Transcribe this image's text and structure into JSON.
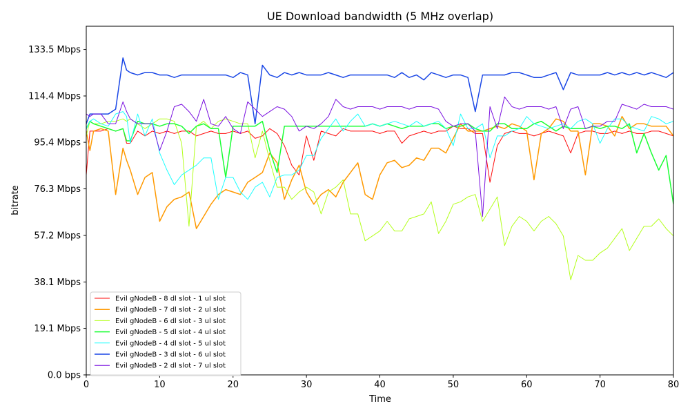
{
  "chart_data": {
    "type": "line",
    "title": "UE Download bandwidth (5 MHz overlap)",
    "xlabel": "Time",
    "ylabel": "bitrate",
    "xlim": [
      0,
      80
    ],
    "ylim": [
      0,
      143
    ],
    "x_ticks": [
      0,
      10,
      20,
      30,
      40,
      50,
      60,
      70,
      80
    ],
    "y_ticks": [
      {
        "value": 0,
        "label": "0.0 bps"
      },
      {
        "value": 19.1,
        "label": "19.1 Mbps"
      },
      {
        "value": 38.1,
        "label": "38.1 Mbps"
      },
      {
        "value": 57.2,
        "label": "57.2 Mbps"
      },
      {
        "value": 76.3,
        "label": "76.3 Mbps"
      },
      {
        "value": 95.4,
        "label": "95.4 Mbps"
      },
      {
        "value": 114.4,
        "label": "114.4 Mbps"
      },
      {
        "value": 133.5,
        "label": "133.5 Mbps"
      }
    ],
    "grid": false,
    "legend_position": "lower-left",
    "x": [
      0,
      0.5,
      1,
      2,
      3,
      4,
      5,
      5.5,
      6,
      7,
      8,
      9,
      10,
      11,
      12,
      13,
      14,
      15,
      16,
      17,
      18,
      19,
      20,
      21,
      22,
      23,
      24,
      25,
      26,
      27,
      28,
      29,
      30,
      31,
      32,
      33,
      34,
      35,
      36,
      37,
      38,
      39,
      40,
      41,
      42,
      43,
      44,
      45,
      46,
      47,
      48,
      49,
      50,
      51,
      52,
      53,
      54,
      55,
      56,
      57,
      58,
      59,
      60,
      61,
      62,
      63,
      64,
      65,
      66,
      67,
      68,
      69,
      70,
      71,
      72,
      73,
      74,
      75,
      76,
      77,
      78,
      79,
      80
    ],
    "series": [
      {
        "name": "Evil gNodeB - 8 dl slot - 1 ul slot",
        "color": "#ff0a0a",
        "width": 1,
        "values": [
          82,
          100,
          100,
          100,
          101,
          100,
          101,
          95,
          95,
          100,
          98,
          100,
          99,
          100,
          99,
          100,
          100,
          98,
          99,
          100,
          99,
          99,
          100,
          99,
          100,
          97,
          98,
          101,
          99,
          94,
          86,
          82,
          98,
          88,
          100,
          99,
          98,
          101,
          100,
          100,
          100,
          100,
          99,
          100,
          100,
          95,
          98,
          99,
          100,
          99,
          100,
          100,
          102,
          101,
          101,
          99,
          99,
          79,
          94,
          99,
          100,
          99,
          99,
          98,
          99,
          100,
          99,
          98,
          91,
          99,
          100,
          100,
          99,
          99,
          100,
          99,
          100,
          99,
          99,
          100,
          100,
          99,
          98
        ]
      },
      {
        "name": "Evil gNodeB - 7 dl slot - 2 ul slot",
        "color": "#ff9900",
        "width": 1.5,
        "values": [
          100,
          92,
          100,
          101,
          100,
          74,
          93,
          88,
          84,
          74,
          81,
          83,
          63,
          69,
          72,
          73,
          75,
          60,
          65,
          70,
          74,
          76,
          75,
          74,
          79,
          81,
          83,
          91,
          87,
          72,
          80,
          86,
          75,
          70,
          74,
          76,
          73,
          79,
          83,
          87,
          74,
          72,
          82,
          87,
          88,
          85,
          86,
          89,
          88,
          93,
          93,
          91,
          97,
          103,
          100,
          100,
          100,
          101,
          102,
          101,
          103,
          102,
          100,
          80,
          99,
          101,
          105,
          104,
          100,
          100,
          82,
          103,
          103,
          102,
          98,
          106,
          101,
          103,
          103,
          102,
          102,
          102,
          98
        ]
      },
      {
        "name": "Evil gNodeB - 6 dl slot - 3 ul slot",
        "color": "#b3ff1a",
        "width": 1,
        "values": [
          98,
          104,
          103,
          103,
          104,
          104,
          105,
          104,
          105,
          103,
          101,
          103,
          105,
          105,
          104,
          95,
          61,
          102,
          104,
          101,
          104,
          105,
          104,
          103,
          103,
          89,
          100,
          88,
          77,
          77,
          72,
          75,
          77,
          75,
          66,
          75,
          77,
          80,
          66,
          66,
          55,
          57,
          59,
          63,
          59,
          59,
          64,
          65,
          66,
          71,
          58,
          63,
          70,
          71,
          73,
          74,
          63,
          68,
          73,
          53,
          61,
          65,
          63,
          59,
          63,
          65,
          62,
          57,
          39,
          49,
          47,
          47,
          50,
          52,
          56,
          60,
          51,
          56,
          61,
          61,
          64,
          60,
          57
        ]
      },
      {
        "name": "Evil gNodeB - 5 dl slot - 4 ul slot",
        "color": "#1aff33",
        "width": 1.5,
        "values": [
          101,
          104,
          103,
          102,
          101,
          100,
          101,
          96,
          96,
          104,
          103,
          103,
          102,
          103,
          103,
          102,
          99,
          102,
          103,
          101,
          101,
          81,
          102,
          102,
          102,
          102,
          104,
          92,
          83,
          102,
          102,
          102,
          102,
          102,
          102,
          102,
          102,
          102,
          102,
          102,
          102,
          103,
          102,
          103,
          102,
          101,
          102,
          102,
          102,
          103,
          103,
          101,
          102,
          102,
          103,
          101,
          100,
          100,
          103,
          103,
          101,
          101,
          101,
          103,
          104,
          102,
          100,
          102,
          101,
          101,
          101,
          102,
          101,
          102,
          102,
          101,
          103,
          91,
          99,
          91,
          84,
          90,
          70
        ]
      },
      {
        "name": "Evil gNodeB - 4 dl slot - 5 ul slot",
        "color": "#1affff",
        "width": 1,
        "values": [
          101,
          104,
          105,
          103,
          102,
          107,
          108,
          106,
          95,
          107,
          98,
          105,
          91,
          84,
          78,
          82,
          84,
          86,
          89,
          89,
          72,
          81,
          81,
          75,
          72,
          77,
          79,
          73,
          81,
          82,
          82,
          84,
          90,
          90,
          97,
          101,
          105,
          100,
          104,
          107,
          102,
          103,
          102,
          103,
          104,
          103,
          102,
          104,
          102,
          103,
          104,
          101,
          94,
          107,
          101,
          101,
          103,
          89,
          98,
          98,
          100,
          101,
          106,
          103,
          102,
          101,
          102,
          103,
          101,
          104,
          105,
          103,
          95,
          101,
          105,
          105,
          102,
          101,
          100,
          106,
          105,
          103,
          104
        ]
      },
      {
        "name": "Evil gNodeB - 3 dl slot - 6 ul slot",
        "color": "#1a47e6",
        "width": 1.5,
        "values": [
          103,
          107,
          107,
          107,
          107,
          109,
          130,
          125,
          124,
          123,
          124,
          124,
          123,
          123,
          122,
          123,
          123,
          123,
          123,
          123,
          123,
          123,
          122,
          124,
          123,
          103,
          127,
          123,
          122,
          124,
          123,
          124,
          123,
          123,
          123,
          124,
          123,
          122,
          123,
          123,
          123,
          123,
          123,
          123,
          122,
          124,
          122,
          123,
          121,
          124,
          123,
          122,
          123,
          123,
          122,
          108,
          123,
          123,
          123,
          123,
          124,
          124,
          123,
          122,
          122,
          123,
          124,
          117,
          124,
          123,
          123,
          123,
          123,
          124,
          123,
          124,
          123,
          124,
          123,
          124,
          123,
          122,
          124
        ]
      },
      {
        "name": "Evil gNodeB - 2 dl slot - 7 ul slot",
        "color": "#7a10e0",
        "width": 1,
        "values": [
          107,
          106,
          107,
          107,
          103,
          103,
          112,
          108,
          105,
          103,
          103,
          103,
          92,
          100,
          110,
          111,
          108,
          104,
          113,
          103,
          102,
          106,
          101,
          99,
          112,
          109,
          106,
          108,
          110,
          109,
          106,
          100,
          102,
          101,
          103,
          106,
          113,
          110,
          109,
          110,
          110,
          110,
          109,
          110,
          110,
          110,
          109,
          110,
          110,
          110,
          109,
          104,
          102,
          103,
          103,
          100,
          65,
          110,
          101,
          114,
          110,
          109,
          110,
          110,
          110,
          109,
          110,
          101,
          109,
          110,
          101,
          102,
          102,
          104,
          104,
          111,
          110,
          109,
          111,
          110,
          110,
          110,
          109
        ]
      }
    ]
  }
}
